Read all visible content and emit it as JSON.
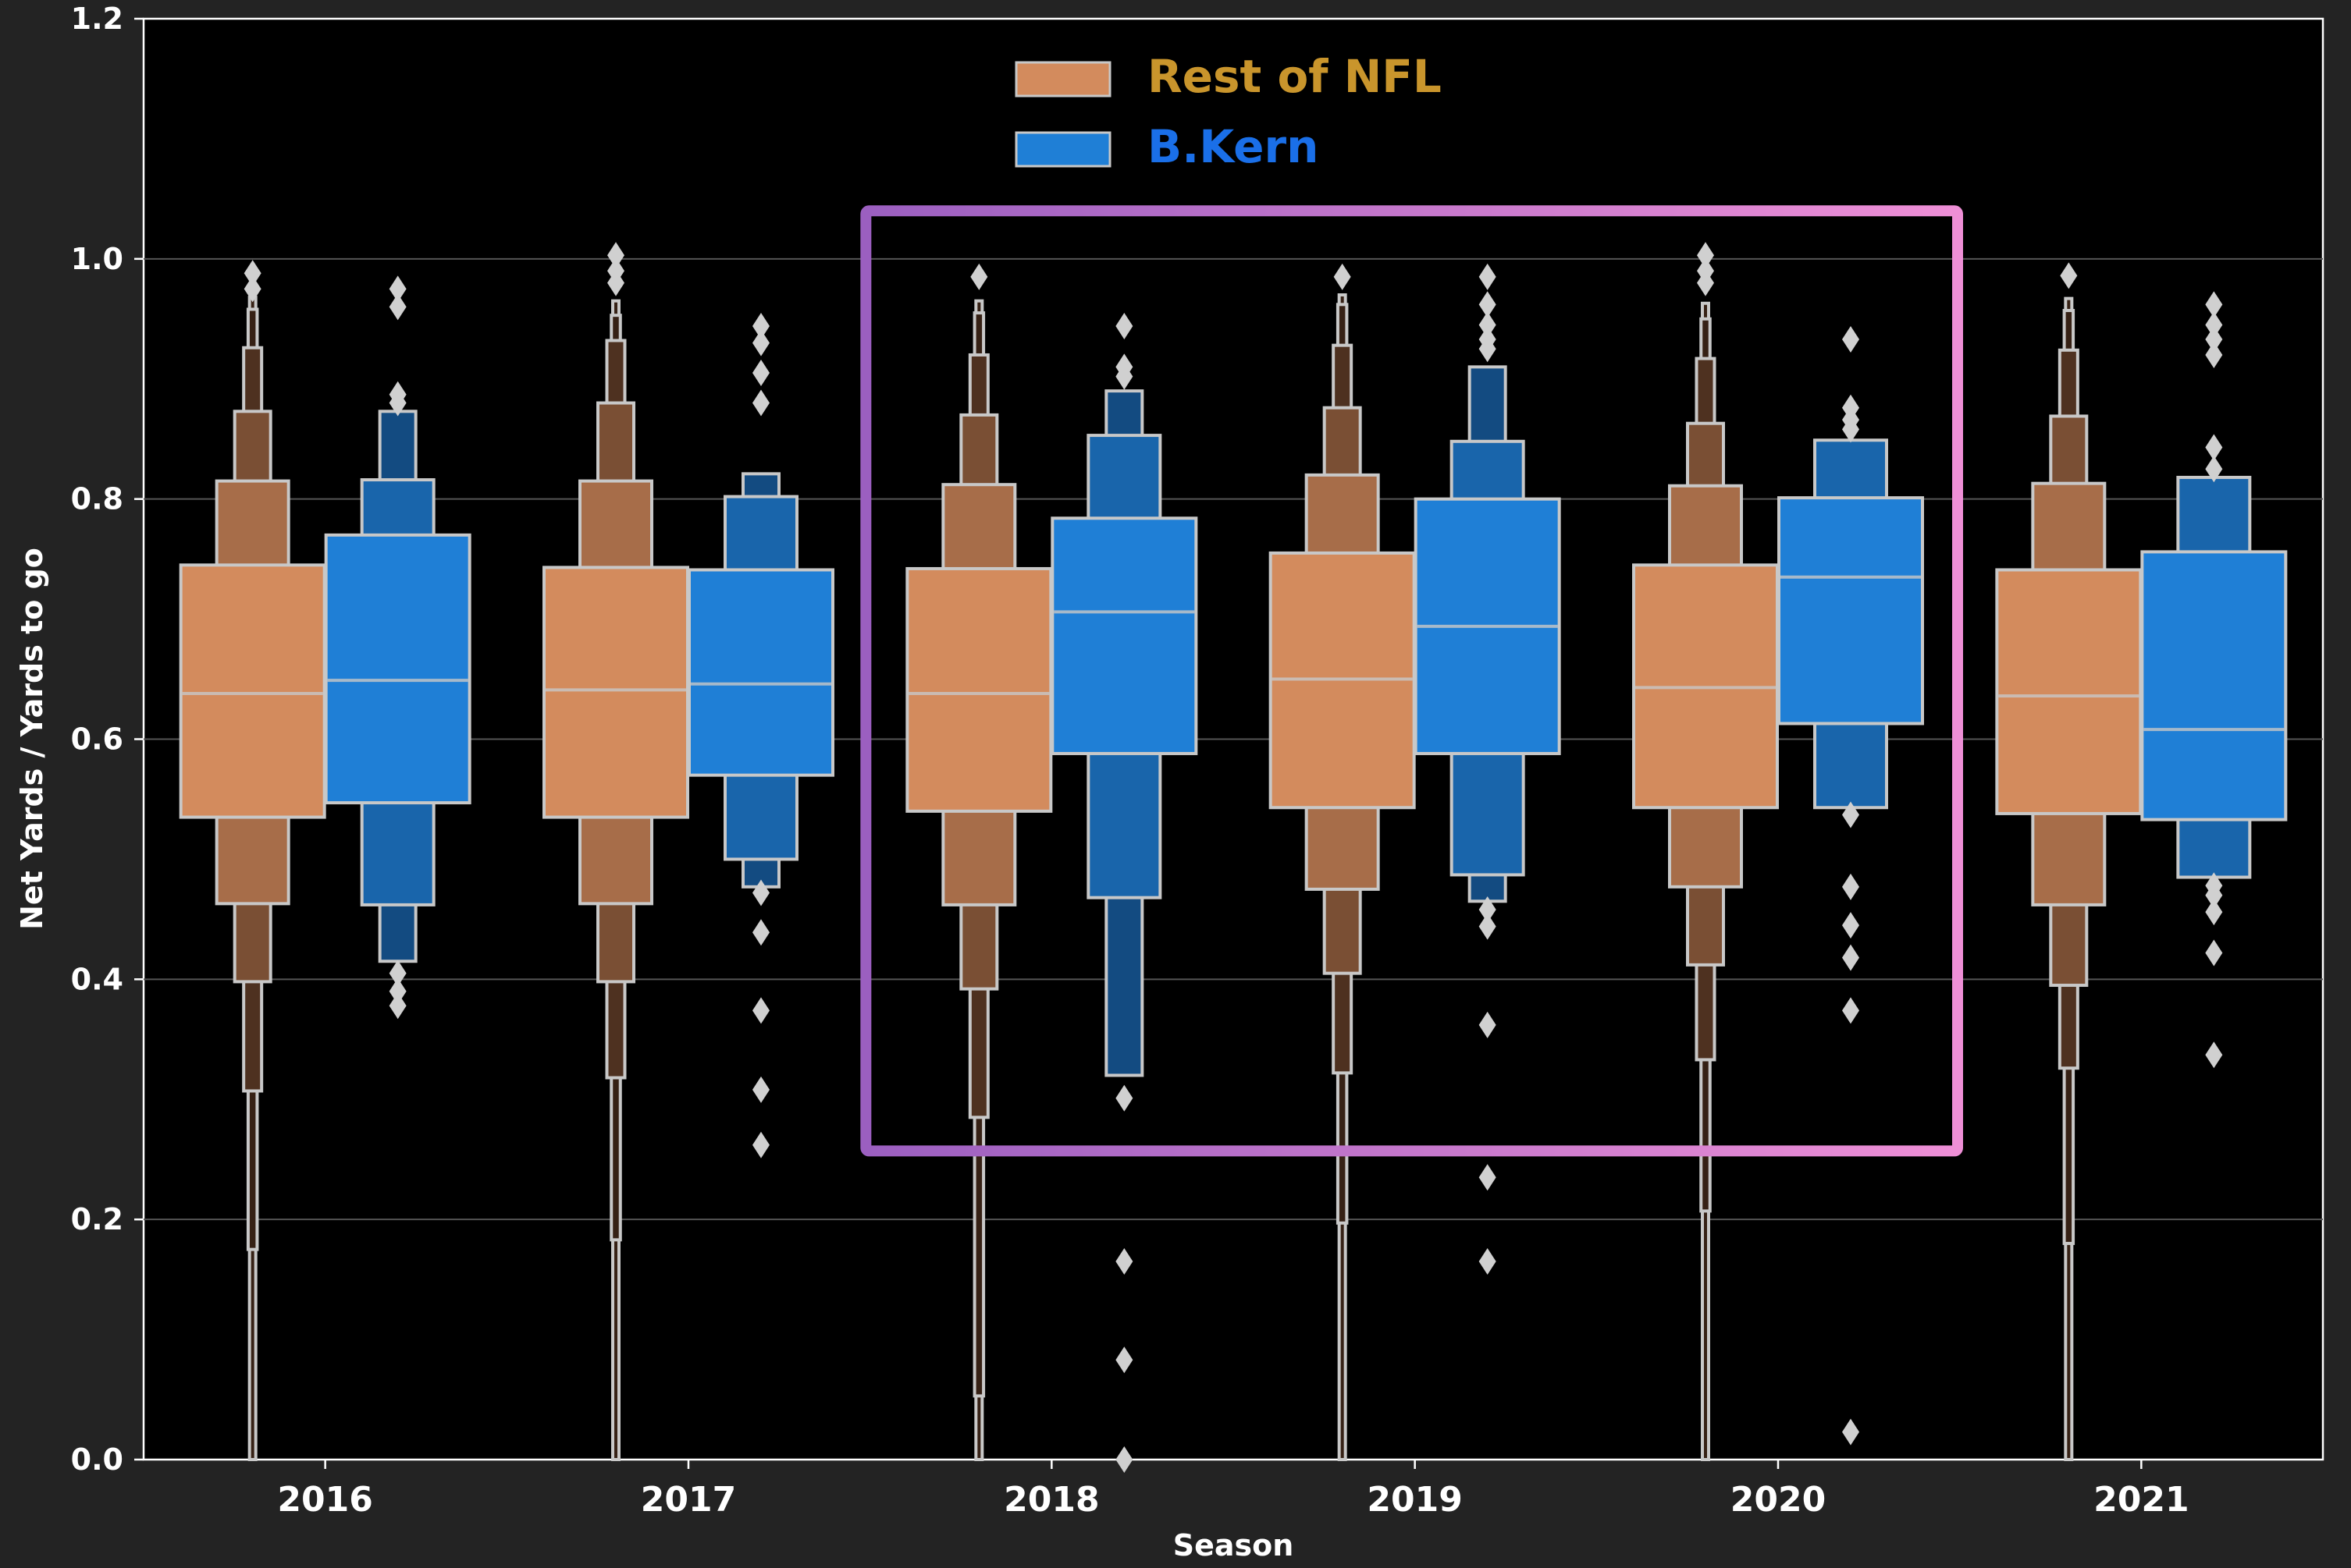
{
  "chart_data": {
    "type": "boxen",
    "title": "",
    "xlabel": "Season",
    "ylabel": "Net Yards / Yards to go",
    "ylim": [
      0.0,
      1.2
    ],
    "yticks": [
      "0.0",
      "0.2",
      "0.4",
      "0.6",
      "0.8",
      "1.0",
      "1.2"
    ],
    "categories": [
      "2016",
      "2017",
      "2018",
      "2019",
      "2020",
      "2021"
    ],
    "grid": "horizontal",
    "legend_position": "upper-center",
    "highlight_range": [
      "2018",
      "2020"
    ],
    "colors": {
      "figure_bg": "#232323",
      "plot_bg": "#000000",
      "rest": "#d38b5d",
      "kern": "#1f7fd6",
      "edge": "#c8c8c8",
      "grid": "#555555",
      "highlight_start": "#9b5fc0",
      "highlight_end": "#ee8fd6",
      "legend_rest_text": "#c9952c",
      "legend_kern_text": "#1a6fe8"
    },
    "series": [
      {
        "name": "Rest of NFL",
        "color": "#d38b5d",
        "data": [
          {
            "levels": [
              [
                0.535,
                0.745
              ],
              [
                0.463,
                0.815
              ],
              [
                0.398,
                0.873
              ],
              [
                0.307,
                0.926
              ],
              [
                0.175,
                0.958
              ],
              [
                0.0,
                0.968
              ]
            ],
            "median": 0.638,
            "outliers": [
              0.975,
              0.988
            ]
          },
          {
            "levels": [
              [
                0.535,
                0.743
              ],
              [
                0.463,
                0.815
              ],
              [
                0.398,
                0.88
              ],
              [
                0.318,
                0.932
              ],
              [
                0.183,
                0.953
              ],
              [
                0.0,
                0.965
              ]
            ],
            "median": 0.641,
            "outliers": [
              0.98,
              0.99,
              1.003
            ]
          },
          {
            "levels": [
              [
                0.54,
                0.742
              ],
              [
                0.462,
                0.812
              ],
              [
                0.392,
                0.87
              ],
              [
                0.285,
                0.92
              ],
              [
                0.053,
                0.955
              ],
              [
                0.0,
                0.965
              ]
            ],
            "median": 0.638,
            "outliers": [
              0.985
            ]
          },
          {
            "levels": [
              [
                0.543,
                0.755
              ],
              [
                0.475,
                0.82
              ],
              [
                0.405,
                0.876
              ],
              [
                0.322,
                0.928
              ],
              [
                0.197,
                0.962
              ],
              [
                0.0,
                0.97
              ]
            ],
            "median": 0.65,
            "outliers": [
              0.985
            ]
          },
          {
            "levels": [
              [
                0.543,
                0.745
              ],
              [
                0.477,
                0.811
              ],
              [
                0.412,
                0.863
              ],
              [
                0.333,
                0.917
              ],
              [
                0.207,
                0.95
              ],
              [
                0.0,
                0.963
              ]
            ],
            "median": 0.643,
            "outliers": [
              0.98,
              0.99,
              1.003
            ]
          },
          {
            "levels": [
              [
                0.538,
                0.741
              ],
              [
                0.462,
                0.813
              ],
              [
                0.395,
                0.869
              ],
              [
                0.326,
                0.924
              ],
              [
                0.18,
                0.957
              ],
              [
                0.0,
                0.967
              ]
            ],
            "median": 0.636,
            "outliers": [
              0.986
            ]
          }
        ]
      },
      {
        "name": "B.Kern",
        "color": "#1f7fd6",
        "data": [
          {
            "levels": [
              [
                0.547,
                0.77
              ],
              [
                0.462,
                0.816
              ],
              [
                0.415,
                0.873
              ]
            ],
            "median": 0.649,
            "outliers": [
              0.378,
              0.39,
              0.405,
              0.88,
              0.887,
              0.96,
              0.975
            ]
          },
          {
            "levels": [
              [
                0.57,
                0.741
              ],
              [
                0.5,
                0.802
              ],
              [
                0.477,
                0.821
              ]
            ],
            "median": 0.646,
            "outliers": [
              0.262,
              0.308,
              0.374,
              0.439,
              0.472,
              0.88,
              0.905,
              0.93,
              0.944
            ]
          },
          {
            "levels": [
              [
                0.588,
                0.784
              ],
              [
                0.468,
                0.853
              ],
              [
                0.32,
                0.89
              ]
            ],
            "median": 0.706,
            "outliers": [
              0.0,
              0.083,
              0.165,
              0.301,
              0.902,
              0.91,
              0.944
            ]
          },
          {
            "levels": [
              [
                0.588,
                0.8
              ],
              [
                0.487,
                0.848
              ],
              [
                0.465,
                0.91
              ]
            ],
            "median": 0.694,
            "outliers": [
              0.165,
              0.235,
              0.362,
              0.444,
              0.458,
              0.925,
              0.933,
              0.945,
              0.962,
              0.985
            ]
          },
          {
            "levels": [
              [
                0.613,
                0.801
              ],
              [
                0.543,
                0.849
              ]
            ],
            "median": 0.735,
            "outliers": [
              0.023,
              0.374,
              0.418,
              0.445,
              0.477,
              0.537,
              0.858,
              0.866,
              0.876,
              0.933
            ]
          },
          {
            "levels": [
              [
                0.533,
                0.756
              ],
              [
                0.485,
                0.818
              ]
            ],
            "median": 0.608,
            "outliers": [
              0.337,
              0.422,
              0.456,
              0.47,
              0.478,
              0.825,
              0.843,
              0.92,
              0.933,
              0.945,
              0.962
            ]
          }
        ]
      }
    ]
  }
}
